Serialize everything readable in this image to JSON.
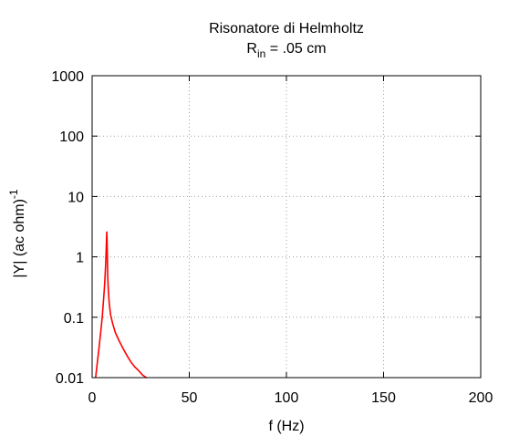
{
  "chart_data": {
    "type": "line",
    "title": "Risonatore di Helmholtz",
    "subtitle": {
      "main": "R",
      "sub": "in",
      "rest": " = .05 cm"
    },
    "xlabel": "f (Hz)",
    "ylabel": {
      "main": "|Y| (ac ohm)",
      "sup": "-1"
    },
    "xlim": [
      0,
      200
    ],
    "ylim": [
      0.01,
      1000
    ],
    "yscale": "log",
    "grid": true,
    "x_ticks": [
      {
        "value": 0,
        "label": "0"
      },
      {
        "value": 50,
        "label": "50"
      },
      {
        "value": 100,
        "label": "100"
      },
      {
        "value": 150,
        "label": "150"
      },
      {
        "value": 200,
        "label": "200"
      }
    ],
    "y_ticks": [
      {
        "value": 0.01,
        "label": "0.01"
      },
      {
        "value": 0.1,
        "label": "0.1"
      },
      {
        "value": 1,
        "label": "1"
      },
      {
        "value": 10,
        "label": "10"
      },
      {
        "value": 100,
        "label": "100"
      },
      {
        "value": 1000,
        "label": "1000"
      }
    ],
    "series": [
      {
        "color": "#ff0000",
        "x": [
          1.8,
          2.5,
          3.5,
          4.5,
          5.2,
          5.8,
          6.3,
          6.7,
          7.0,
          7.2,
          7.4,
          7.55,
          7.7,
          7.85,
          8.0,
          8.3,
          8.8,
          9.5,
          10.5,
          12,
          14,
          16,
          18,
          20,
          22,
          24,
          26,
          28
        ],
        "y": [
          0.01,
          0.016,
          0.03,
          0.06,
          0.1,
          0.18,
          0.3,
          0.5,
          0.8,
          1.2,
          1.9,
          2.6,
          1.8,
          1.0,
          0.5,
          0.3,
          0.17,
          0.11,
          0.08,
          0.055,
          0.04,
          0.03,
          0.023,
          0.018,
          0.015,
          0.013,
          0.011,
          0.01
        ]
      }
    ]
  }
}
